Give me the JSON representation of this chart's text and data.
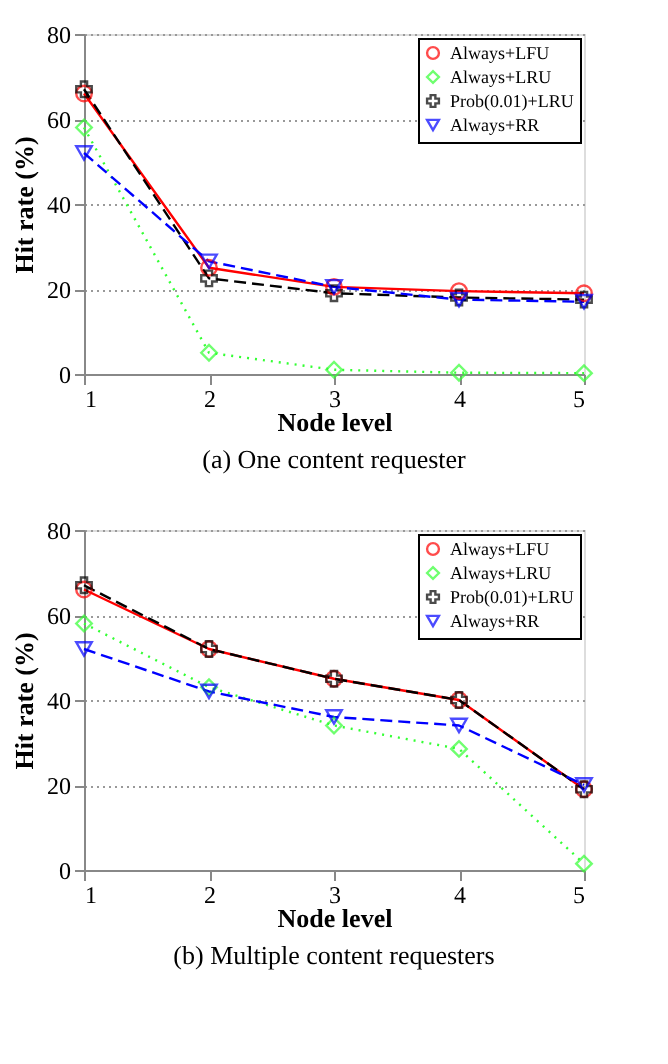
{
  "chart_data": [
    {
      "type": "line",
      "xlabel": "Node level",
      "ylabel": "Hit rate (%)",
      "annotations": [
        "(a) One content requester"
      ],
      "x": [
        1,
        2,
        3,
        4,
        5
      ],
      "xlim": [
        1,
        5
      ],
      "xticks": [
        1,
        2,
        3,
        4,
        5
      ],
      "ylim": [
        0,
        80
      ],
      "yticks": [
        0,
        20,
        40,
        60,
        80
      ],
      "grid": "y",
      "legend": "top right",
      "series": [
        {
          "name": "Always+LFU",
          "color": "#ff0000",
          "marker": "circle",
          "line_style": "solid",
          "values": [
            66,
            25,
            20.5,
            19.5,
            19
          ]
        },
        {
          "name": "Always+LRU",
          "color": "#33ff33",
          "marker": "diamond",
          "line_style": "dotted",
          "values": [
            58,
            5,
            1,
            0.3,
            0.2
          ]
        },
        {
          "name": "Prob(0.01)+LRU",
          "color": "#000000",
          "marker": "cross",
          "line_style": "dashed",
          "values": [
            67,
            22.5,
            19,
            18,
            17.5
          ]
        },
        {
          "name": "Always+RR",
          "color": "#0000ff",
          "marker": "triangle",
          "line_style": "dashed",
          "values": [
            52,
            26.5,
            20.5,
            17.5,
            17
          ]
        }
      ]
    },
    {
      "type": "line",
      "xlabel": "Node level",
      "ylabel": "Hit rate (%)",
      "annotations": [
        "(b) Multiple content requesters"
      ],
      "x": [
        1,
        2,
        3,
        4,
        5
      ],
      "xlim": [
        1,
        5
      ],
      "xticks": [
        1,
        2,
        3,
        4,
        5
      ],
      "ylim": [
        0,
        80
      ],
      "yticks": [
        0,
        20,
        40,
        60,
        80
      ],
      "grid": "y",
      "legend": "top right",
      "series": [
        {
          "name": "Always+LFU",
          "color": "#ff0000",
          "marker": "circle",
          "line_style": "solid",
          "values": [
            66,
            52,
            45,
            40,
            19
          ]
        },
        {
          "name": "Always+LRU",
          "color": "#33ff33",
          "marker": "diamond",
          "line_style": "dotted",
          "values": [
            58,
            43,
            34,
            28.5,
            1.5
          ]
        },
        {
          "name": "Prob(0.01)+LRU",
          "color": "#000000",
          "marker": "cross",
          "line_style": "dashed",
          "values": [
            67,
            52,
            45,
            40,
            19
          ]
        },
        {
          "name": "Always+RR",
          "color": "#0000ff",
          "marker": "triangle",
          "line_style": "dashed",
          "values": [
            52,
            42,
            36,
            34,
            20
          ]
        }
      ]
    }
  ]
}
